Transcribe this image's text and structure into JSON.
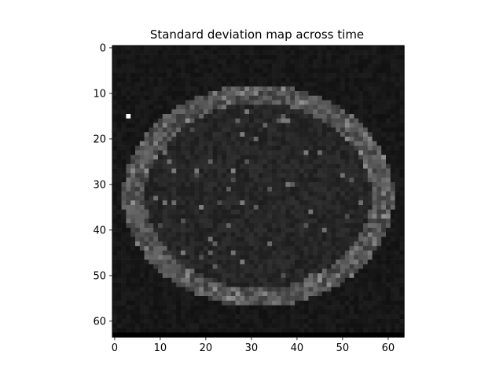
{
  "chart_data": {
    "type": "heatmap",
    "title": "Standard deviation map across time",
    "colormap": "gray",
    "rows": 64,
    "cols": 64,
    "xlim": [
      -0.5,
      63.5
    ],
    "ylim": [
      63.5,
      -0.5
    ],
    "x_ticks": [
      0,
      10,
      20,
      30,
      40,
      50,
      60
    ],
    "x_tick_labels": [
      "0",
      "10",
      "20",
      "30",
      "40",
      "50",
      "60"
    ],
    "y_ticks": [
      0,
      10,
      20,
      30,
      40,
      50,
      60
    ],
    "y_tick_labels": [
      "0",
      "10",
      "20",
      "30",
      "40",
      "50",
      "60"
    ],
    "description_values": {
      "background": 0.09,
      "brain_interior": 0.15,
      "brain_edge_ring": 0.32,
      "bright_spot": {
        "row": 15,
        "col": 3,
        "value": 1.0
      },
      "last_row": 0.0
    },
    "grid": false
  }
}
